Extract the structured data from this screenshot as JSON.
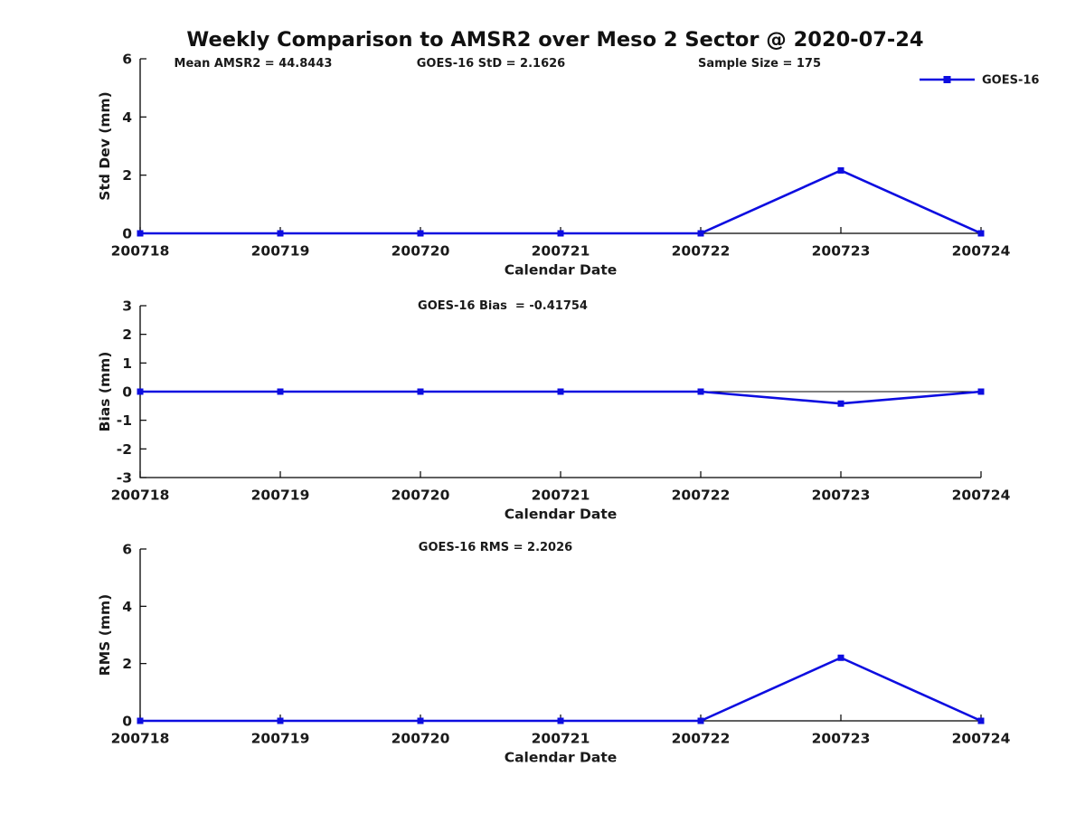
{
  "figure": {
    "title": "Weekly Comparison to AMSR2 over Meso 2 Sector @ 2020-07-24",
    "background_color": "#ffffff",
    "text_color": "#1a1a1a",
    "axis_color": "#000000",
    "line_color": "#0d0de0"
  },
  "legend": {
    "label": "GOES-16",
    "marker": "filled-square",
    "color": "#0d0de0",
    "position": "top-right",
    "border": "none"
  },
  "stats": {
    "mean_amsr2": "44.8443",
    "goes16_std": "2.1626",
    "sample_size": "175",
    "goes16_bias": "-0.41754",
    "goes16_rms": "2.2026"
  },
  "chart_data": [
    {
      "type": "line",
      "name": "stddev",
      "title": "",
      "ylabel": "Std Dev (mm)",
      "xlabel": "Calendar Date",
      "categories": [
        "200718",
        "200719",
        "200720",
        "200721",
        "200722",
        "200723",
        "200724"
      ],
      "series": [
        {
          "name": "GOES-16",
          "values": [
            0,
            0,
            0,
            0,
            0,
            2.1626,
            0
          ]
        }
      ],
      "ylim": [
        0,
        6
      ],
      "yticks": [
        0,
        2,
        4,
        6
      ],
      "grid": false,
      "zero_line": false,
      "legend_entry": "GOES-16",
      "annotations": [
        "Mean AMSR2 = 44.8443",
        "GOES-16 StD = 2.1626",
        "Sample Size = 175"
      ]
    },
    {
      "type": "line",
      "name": "bias",
      "title": "",
      "ylabel": "Bias (mm)",
      "xlabel": "Calendar Date",
      "categories": [
        "200718",
        "200719",
        "200720",
        "200721",
        "200722",
        "200723",
        "200724"
      ],
      "series": [
        {
          "name": "GOES-16",
          "values": [
            0,
            0,
            0,
            0,
            0,
            -0.41754,
            0
          ]
        }
      ],
      "ylim": [
        -3,
        3
      ],
      "yticks": [
        -3,
        -2,
        -1,
        0,
        1,
        2,
        3
      ],
      "grid": false,
      "zero_line": true,
      "annotations": [
        "GOES-16 Bias  = -0.41754"
      ]
    },
    {
      "type": "line",
      "name": "rms",
      "title": "",
      "ylabel": "RMS (mm)",
      "xlabel": "Calendar Date",
      "categories": [
        "200718",
        "200719",
        "200720",
        "200721",
        "200722",
        "200723",
        "200724"
      ],
      "series": [
        {
          "name": "GOES-16",
          "values": [
            0,
            0,
            0,
            0,
            0,
            2.2026,
            0
          ]
        }
      ],
      "ylim": [
        0,
        6
      ],
      "yticks": [
        0,
        2,
        4,
        6
      ],
      "grid": false,
      "zero_line": false,
      "annotations": [
        "GOES-16 RMS = 2.2026"
      ]
    }
  ]
}
